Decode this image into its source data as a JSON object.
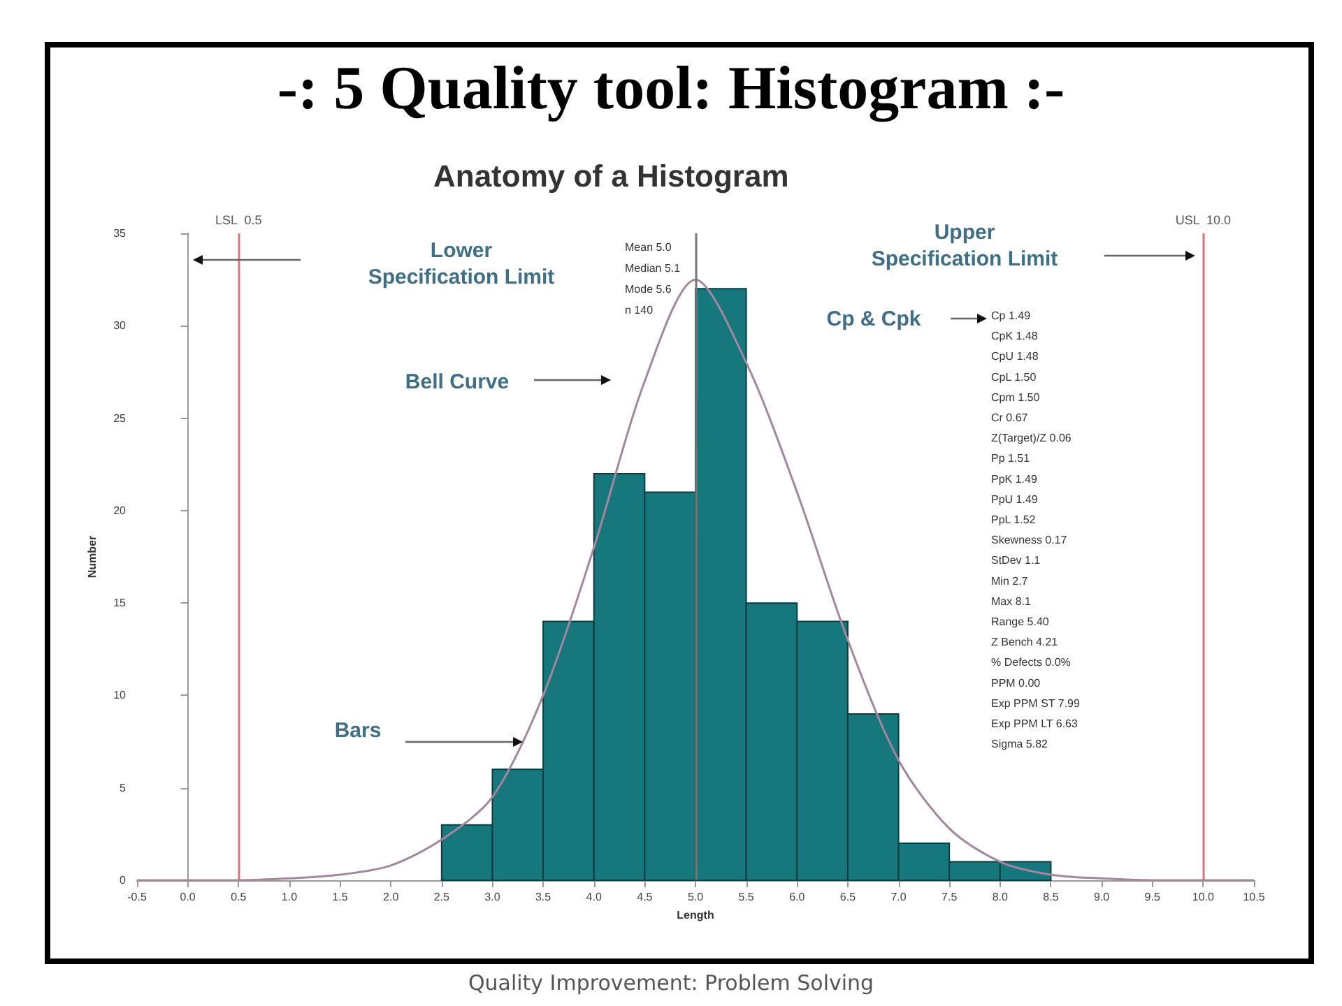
{
  "chart_data": {
    "type": "histogram",
    "title": "-: 5 Quality tool: Histogram :-",
    "subtitle": "Anatomy of a Histogram",
    "xlabel": "Length",
    "ylabel": "Number",
    "bins": [
      2.5,
      3.0,
      3.5,
      4.0,
      4.5,
      5.0,
      5.5,
      6.0,
      6.5,
      7.0,
      7.5,
      8.0,
      8.5
    ],
    "values": [
      3,
      6,
      14,
      22,
      21,
      32,
      15,
      14,
      9,
      2,
      1,
      1
    ],
    "color": "#16777c",
    "series": [
      {
        "type": "line",
        "color": "#a4879f",
        "x": [
          -0.5,
          0,
          0.5,
          1.0,
          1.5,
          2.0,
          2.5,
          3.0,
          3.5,
          4.0,
          4.5,
          5.0,
          5.5,
          6.0,
          6.5,
          7.0,
          7.5,
          8.0,
          8.5,
          9.0,
          9.5,
          10.0,
          10.5
        ],
        "values": [
          0,
          0,
          0,
          0.1,
          0.3,
          0.8,
          2.2,
          4.5,
          10,
          18,
          27,
          32.5,
          28,
          21,
          13,
          6.5,
          2.8,
          1,
          0.3,
          0.1,
          0,
          0,
          0
        ]
      }
    ],
    "xlim": [
      -0.5,
      10.5
    ],
    "xticks": [
      {
        "value": -0.5,
        "label": "-0.5"
      },
      {
        "value": 0,
        "label": "0.0"
      },
      {
        "value": 0.5,
        "label": "0.5"
      },
      {
        "value": 1,
        "label": "1.0"
      },
      {
        "value": 1.5,
        "label": "1.5"
      },
      {
        "value": 2,
        "label": "2.0"
      },
      {
        "value": 2.5,
        "label": "2.5"
      },
      {
        "value": 3,
        "label": "3.0"
      },
      {
        "value": 3.5,
        "label": "3.5"
      },
      {
        "value": 4,
        "label": "4.0"
      },
      {
        "value": 4.5,
        "label": "4.5"
      },
      {
        "value": 5,
        "label": "5.0"
      },
      {
        "value": 5.5,
        "label": "5.5"
      },
      {
        "value": 6,
        "label": "6.0"
      },
      {
        "value": 6.5,
        "label": "6.5"
      },
      {
        "value": 7,
        "label": "7.0"
      },
      {
        "value": 7.5,
        "label": "7.5"
      },
      {
        "value": 8,
        "label": "8.0"
      },
      {
        "value": 8.5,
        "label": "8.5"
      },
      {
        "value": 9,
        "label": "9.0"
      },
      {
        "value": 9.5,
        "label": "9.5"
      },
      {
        "value": 10,
        "label": "10.0"
      },
      {
        "value": 10.5,
        "label": "10.5"
      }
    ],
    "ylim": [
      0,
      35
    ],
    "yticks": [
      0,
      5,
      10,
      15,
      20,
      25,
      30,
      35
    ],
    "grid": false,
    "ref_lines": [
      {
        "axis": "x",
        "value": 0.5,
        "label": "LSL  0.5",
        "color": "#e07080"
      },
      {
        "axis": "x",
        "value": 10.0,
        "label": "USL  10.0",
        "color": "#e07080"
      },
      {
        "axis": "x",
        "value": 5.0,
        "color": "#777777"
      }
    ],
    "annotations": [
      "Lower\nSpecification Limit",
      "Upper\nSpecification Limit",
      "Bell Curve",
      {
        "text": "Bars",
        "x": 3.3,
        "y": 7.5
      },
      "Cp & Cpk",
      "Mean 5.0",
      "Median 5.1",
      "Mode 5.6",
      "n 140",
      "Cp 1.49",
      "CpK 1.48",
      "CpU 1.48",
      "CpL 1.50",
      "Cpm 1.50",
      "Cr 0.67",
      "Z(Target)/Z 0.06",
      "Pp 1.51",
      "PpK 1.49",
      "PpU 1.49",
      "PpL 1.52",
      "Skewness 0.17",
      "StDev 1.1",
      "Min 2.7",
      "Max 8.1",
      "Range 5.40",
      "Z Bench 4.21",
      "% Defects 0.0%",
      "PPM 0.00",
      "Exp PPM ST 7.99",
      "Exp PPM LT 6.63",
      "Sigma 5.82",
      "Quality Improvement: Problem Solving"
    ]
  }
}
